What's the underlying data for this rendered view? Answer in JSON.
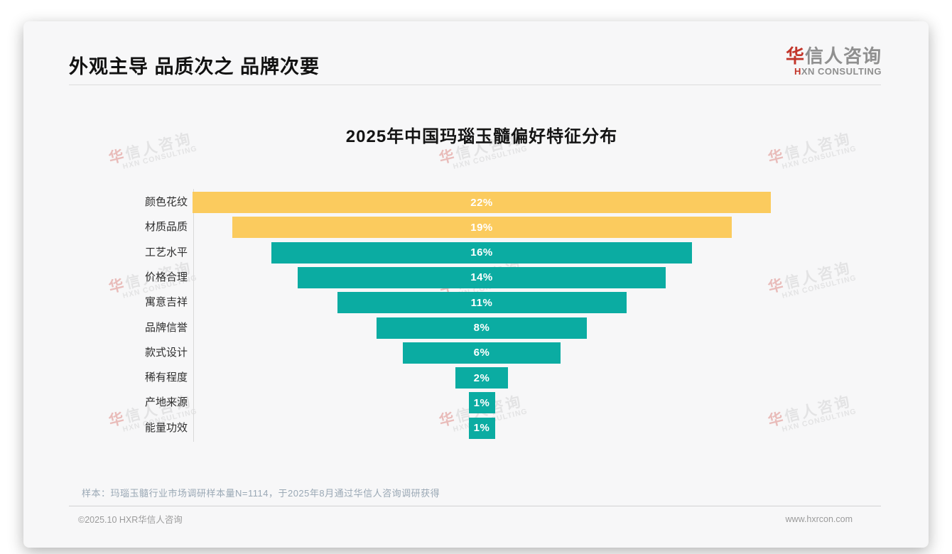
{
  "header": {
    "title": "外观主导 品质次之 品牌次要",
    "logo": {
      "cn_first": "华",
      "cn_rest": "信人咨询",
      "en_first": "H",
      "en_rest": "XN CONSULTING"
    }
  },
  "chart_data": {
    "type": "bar",
    "variant": "centered-funnel",
    "title": "2025年中国玛瑙玉髓偏好特征分布",
    "categories": [
      "颜色花纹",
      "材质品质",
      "工艺水平",
      "价格合理",
      "寓意吉祥",
      "品牌信誉",
      "款式设计",
      "稀有程度",
      "产地来源",
      "能量功效"
    ],
    "values": [
      22,
      19,
      16,
      14,
      11,
      8,
      6,
      2,
      1,
      1
    ],
    "value_labels": [
      "22%",
      "19%",
      "16%",
      "14%",
      "11%",
      "8%",
      "6%",
      "2%",
      "1%",
      "1%"
    ],
    "bar_colors": [
      "#FBCB5E",
      "#FBCB5E",
      "#0BACA2",
      "#0BACA2",
      "#0BACA2",
      "#0BACA2",
      "#0BACA2",
      "#0BACA2",
      "#0BACA2",
      "#0BACA2"
    ],
    "xlabel": "",
    "ylabel": "",
    "unit": "%",
    "grid": false,
    "legend": null
  },
  "footnote": "样本：玛瑙玉髓行业市场调研样本量N=1114，于2025年8月通过华信人咨询调研获得",
  "footer": {
    "left": "©2025.10 HXR华信人咨询",
    "right": "www.hxrcon.com"
  },
  "watermark": {
    "cn_first": "华",
    "cn_rest": "信人咨询",
    "en": "HXN CONSULTING"
  },
  "colors": {
    "accent_red": "#C2352A",
    "bar_yellow": "#FBCB5E",
    "bar_teal": "#0BACA2",
    "card_background": "#F7F7F8"
  }
}
